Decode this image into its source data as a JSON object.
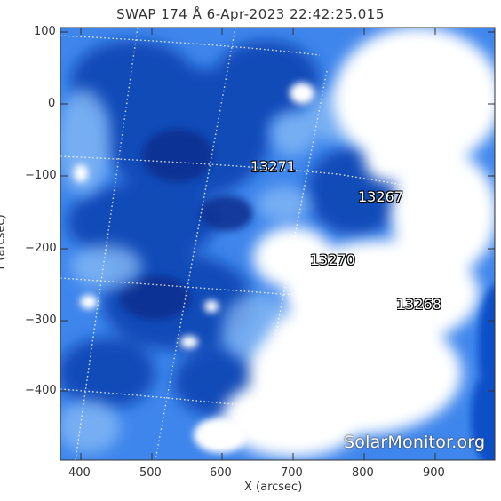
{
  "title": "SWAP 174 Å  6-Apr-2023 22:42:25.015",
  "axes": {
    "xlabel": "X (arcsec)",
    "ylabel": "Y (arcsec)",
    "xticks": [
      "400",
      "500",
      "600",
      "700",
      "800",
      "900"
    ],
    "yticks": [
      "100",
      "0",
      "−100",
      "−200",
      "−300",
      "−400"
    ]
  },
  "active_regions": [
    "13271",
    "13267",
    "13270",
    "13268"
  ],
  "watermark": "SolarMonitor.org",
  "colors": {
    "frame": "#333333",
    "deep_blue": "#0b3fae",
    "mid_blue": "#2f77e6",
    "light_blue": "#8fbff5",
    "bright": "#ffffff"
  }
}
